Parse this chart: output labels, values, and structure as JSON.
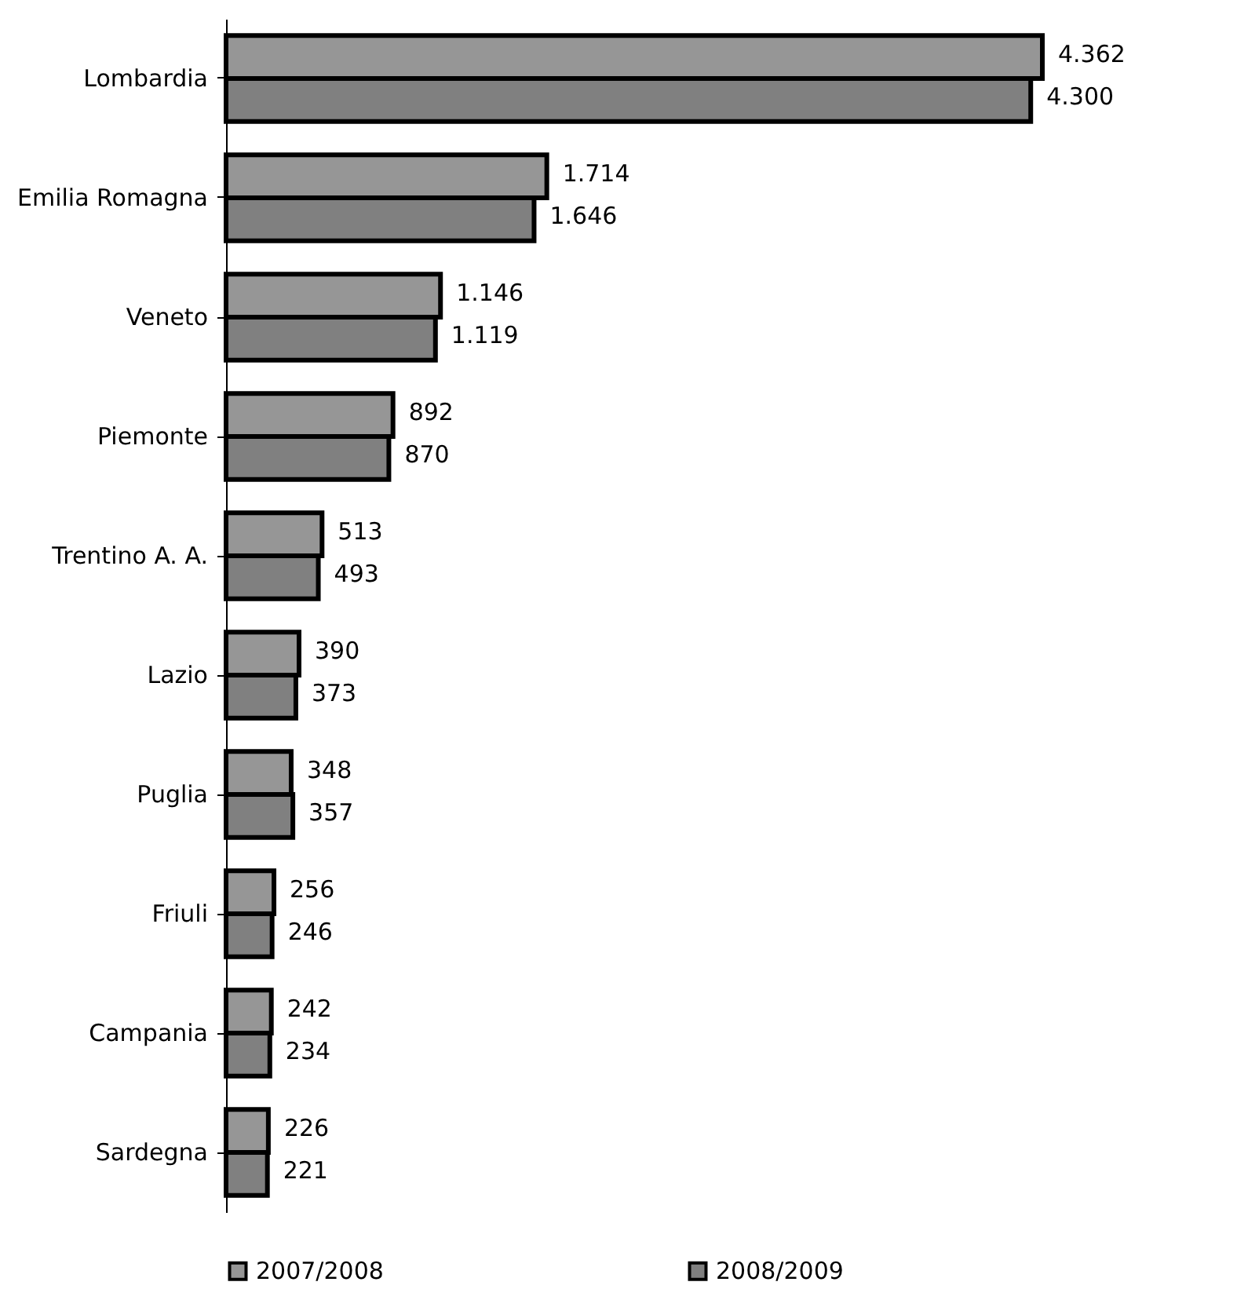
{
  "chart_data": {
    "type": "bar",
    "orientation": "horizontal",
    "legend": "bottom",
    "categories": [
      "Lombardia",
      "Emilia Romagna",
      "Veneto",
      "Piemonte",
      "Trentino A. A.",
      "Lazio",
      "Puglia",
      "Friuli",
      "Campania",
      "Sardegna"
    ],
    "series": [
      {
        "name": "2007/2008",
        "color": "#969696",
        "values": [
          4362,
          1714,
          1146,
          892,
          513,
          390,
          348,
          256,
          242,
          226
        ],
        "value_labels": [
          "4.362",
          "1.714",
          "1.146",
          "892",
          "513",
          "390",
          "348",
          "256",
          "242",
          "226"
        ]
      },
      {
        "name": "2008/2009",
        "color": "#808080",
        "values": [
          4300,
          1646,
          1119,
          870,
          493,
          373,
          357,
          246,
          234,
          221
        ],
        "value_labels": [
          "4.300",
          "1.646",
          "1.119",
          "870",
          "493",
          "373",
          "357",
          "246",
          "234",
          "221"
        ]
      }
    ]
  }
}
